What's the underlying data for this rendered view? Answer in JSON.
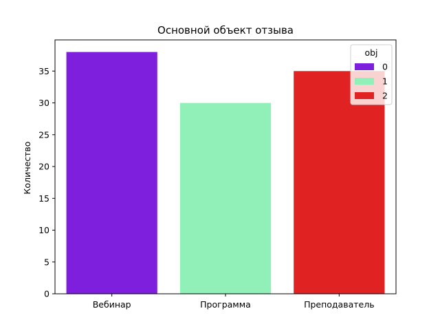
{
  "chart_data": {
    "type": "bar",
    "title": "Основной объект отзыва",
    "xlabel": "",
    "ylabel": "Количество",
    "categories": [
      "Вебинар",
      "Программа",
      "Преподаватель"
    ],
    "series": [
      {
        "name": "0",
        "category": "Вебинар",
        "value": 38,
        "color": "#7f1fde"
      },
      {
        "name": "1",
        "category": "Программа",
        "value": 30,
        "color": "#91f0b8"
      },
      {
        "name": "2",
        "category": "Преподаватель",
        "value": 35,
        "color": "#e02222"
      }
    ],
    "ylim": [
      0,
      39.9
    ],
    "yticks": [
      0,
      5,
      10,
      15,
      20,
      25,
      30,
      35
    ],
    "grid": false,
    "legend": {
      "title": "obj",
      "placement": "top-right"
    }
  }
}
